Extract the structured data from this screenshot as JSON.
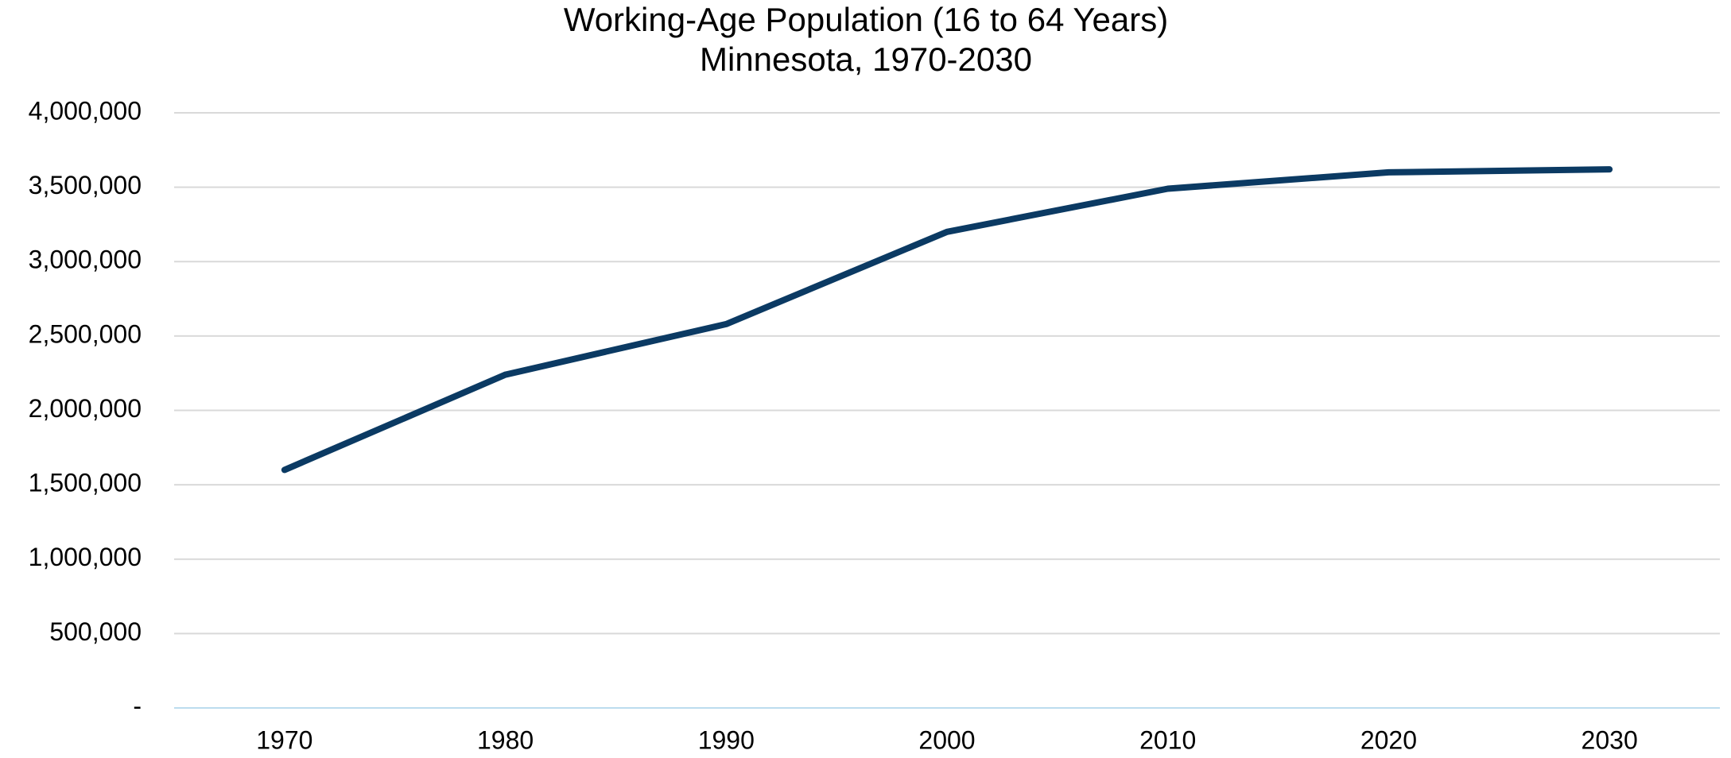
{
  "chart_data": {
    "type": "line",
    "title": "Working-Age Population (16 to 64 Years)",
    "subtitle": "Minnesota, 1970-2030",
    "categories": [
      "1970",
      "1980",
      "1990",
      "2000",
      "2010",
      "2020",
      "2030"
    ],
    "series": [
      {
        "name": "Working-Age Population",
        "color": "#0b3a63",
        "values": [
          1600000,
          2240000,
          2580000,
          3200000,
          3490000,
          3600000,
          3620000
        ]
      }
    ],
    "ylim": [
      0,
      4000000
    ],
    "yticks": [
      {
        "value": 0,
        "label": "-"
      },
      {
        "value": 500000,
        "label": "500,000"
      },
      {
        "value": 1000000,
        "label": "1,000,000"
      },
      {
        "value": 1500000,
        "label": "1,500,000"
      },
      {
        "value": 2000000,
        "label": "2,000,000"
      },
      {
        "value": 2500000,
        "label": "2,500,000"
      },
      {
        "value": 3000000,
        "label": "3,000,000"
      },
      {
        "value": 3500000,
        "label": "3,500,000"
      },
      {
        "value": 4000000,
        "label": "4,000,000"
      }
    ],
    "grid": true
  }
}
